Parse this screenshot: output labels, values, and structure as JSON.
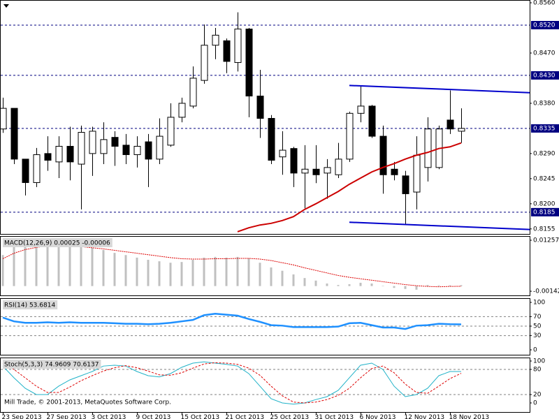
{
  "chart_data": [
    {
      "type": "candlestick",
      "xlim": [
        -0.25,
        47.125
      ],
      "ylim": [
        0.8146,
        0.8565
      ],
      "categories": [
        "23 Sep 2013",
        null,
        null,
        null,
        "27 Sep 2013",
        null,
        null,
        null,
        "3 Oct 2013",
        null,
        null,
        null,
        "9 Oct 2013",
        null,
        null,
        null,
        "15 Oct 2013",
        null,
        null,
        null,
        "21 Oct 2013",
        null,
        null,
        null,
        "25 Oct 2013",
        null,
        null,
        null,
        "31 Oct 2013",
        null,
        null,
        null,
        "6 Nov 2013",
        null,
        null,
        null,
        "12 Nov 2013",
        null,
        null,
        null,
        "18 Nov 2013",
        null
      ],
      "open": [
        0.8334,
        0.8371,
        0.828,
        0.8238,
        0.829,
        0.8275,
        0.8303,
        0.8271,
        0.829,
        0.829,
        0.8319,
        0.8305,
        0.8288,
        0.8311,
        0.828,
        0.8305,
        0.8355,
        0.8375,
        0.8421,
        0.8484,
        0.8492,
        0.8453,
        0.8513,
        0.8393,
        0.8353,
        0.8284,
        0.8299,
        0.8255,
        0.8262,
        0.8255,
        0.8252,
        0.828,
        0.8362,
        0.8375,
        0.8321,
        0.8262,
        0.825,
        0.8221,
        0.8265,
        0.8265,
        0.835,
        0.833
      ],
      "high": [
        0.839,
        0.8371,
        0.828,
        0.83,
        0.8321,
        0.8321,
        0.8338,
        0.834,
        0.8338,
        0.8346,
        0.833,
        0.8325,
        0.8321,
        0.8325,
        0.8353,
        0.838,
        0.839,
        0.8446,
        0.8521,
        0.8515,
        0.8496,
        0.8543,
        0.8515,
        0.844,
        0.8359,
        0.833,
        0.8302,
        0.8305,
        0.8305,
        0.828,
        0.8309,
        0.8365,
        0.8412,
        0.8377,
        0.834,
        0.8275,
        0.8259,
        0.8321,
        0.8355,
        0.834,
        0.8403,
        0.8371
      ],
      "low": [
        0.8327,
        0.8271,
        0.8215,
        0.823,
        0.8259,
        0.8246,
        0.8242,
        0.819,
        0.825,
        0.8271,
        0.8268,
        0.8271,
        0.8265,
        0.823,
        0.8271,
        0.8302,
        0.8346,
        0.8371,
        0.8415,
        0.8459,
        0.8434,
        0.8437,
        0.8355,
        0.8318,
        0.8271,
        0.8252,
        0.823,
        0.8192,
        0.8237,
        0.8209,
        0.8246,
        0.8275,
        0.8346,
        0.8318,
        0.8218,
        0.8242,
        0.8162,
        0.819,
        0.824,
        0.8262,
        0.8325,
        0.8309
      ],
      "close": [
        0.8371,
        0.828,
        0.8238,
        0.8288,
        0.8278,
        0.8303,
        0.8275,
        0.8328,
        0.833,
        0.8315,
        0.8303,
        0.8288,
        0.8303,
        0.828,
        0.8321,
        0.8355,
        0.838,
        0.8425,
        0.8484,
        0.8502,
        0.8455,
        0.8513,
        0.8393,
        0.8353,
        0.8278,
        0.8296,
        0.8255,
        0.8262,
        0.8252,
        0.8265,
        0.828,
        0.8362,
        0.8375,
        0.8321,
        0.8252,
        0.8252,
        0.8218,
        0.8287,
        0.8334,
        0.8334,
        0.8334,
        0.8335
      ],
      "ma_values": [
        null,
        null,
        null,
        null,
        null,
        null,
        null,
        null,
        null,
        null,
        null,
        null,
        null,
        null,
        null,
        null,
        null,
        null,
        null,
        null,
        null,
        0.815,
        0.8157,
        0.8162,
        0.8165,
        0.817,
        0.8177,
        0.819,
        0.82,
        0.8211,
        0.8222,
        0.8235,
        0.8246,
        0.8257,
        0.8265,
        0.8272,
        0.828,
        0.8287,
        0.8292,
        0.8299,
        0.8302,
        0.8309
      ],
      "ma_color": "#cc0000",
      "trendlines": [
        {
          "x": [
            31,
            47.125
          ],
          "values": [
            0.8412,
            0.8399
          ]
        },
        {
          "x": [
            31,
            47.125
          ],
          "values": [
            0.8167,
            0.8154
          ]
        }
      ],
      "trend_color": "#0000cc",
      "hlines": [
        {
          "value": 0.852,
          "label": "0.8520"
        },
        {
          "value": 0.843,
          "label": "0.8430"
        },
        {
          "value": 0.8335,
          "label": "0.8335"
        },
        {
          "value": 0.8185,
          "label": "0.8185"
        }
      ],
      "hline_color": "#000080",
      "yticks": [
        {
          "value": 0.856,
          "label": "0.8560"
        },
        {
          "value": 0.847,
          "label": "0.8470"
        },
        {
          "value": 0.838,
          "label": "0.8380"
        },
        {
          "value": 0.829,
          "label": "0.8290"
        },
        0.8245,
        {
          "value": 0.82,
          "label": "0.8200"
        },
        0.8155
      ]
    },
    {
      "type": "macd",
      "title": "MACD(12,26,9) 0.00025 -0.00006",
      "ylim": [
        -0.00256,
        0.01372
      ],
      "yticks": [
        0.01257,
        -0.00142
      ],
      "values": [
        0.0085,
        0.011,
        0.0116,
        0.0118,
        0.012,
        0.0118,
        0.0114,
        0.011,
        0.0105,
        0.0099,
        0.0091,
        0.0085,
        0.0078,
        0.0072,
        0.0068,
        0.0064,
        0.0066,
        0.0072,
        0.0078,
        0.008,
        0.0078,
        0.008,
        0.0076,
        0.0064,
        0.0051,
        0.0042,
        0.0032,
        0.0022,
        0.0015,
        0.0007,
        0.0003,
        0.0005,
        0.0009,
        0.0007,
        0.0001,
        -0.0005,
        -0.0008,
        -0.001,
        0.0003,
        0.0002,
        0.0002,
        0.00025
      ],
      "color": "#c0c0c0",
      "signal": [
        0.0075,
        0.009,
        0.01,
        0.0106,
        0.011,
        0.0111,
        0.011,
        0.0108,
        0.0105,
        0.0102,
        0.0098,
        0.0094,
        0.009,
        0.0086,
        0.0082,
        0.0078,
        0.0075,
        0.0074,
        0.0074,
        0.0075,
        0.0075,
        0.0076,
        0.0076,
        0.0074,
        0.007,
        0.0064,
        0.0058,
        0.005,
        0.0043,
        0.0036,
        0.0029,
        0.0024,
        0.002,
        0.0016,
        0.0012,
        0.0008,
        0.0004,
        0.0001,
        -0.0001,
        -0.0002,
        -0.0001,
        -6e-05
      ],
      "signal_color": "#dd0000"
    },
    {
      "type": "line",
      "title": "RSI(14) 53.6814",
      "ylim": [
        -10.3,
        108.8
      ],
      "yticks": [
        100,
        70,
        50,
        30,
        0
      ],
      "levels": [
        70,
        50,
        30
      ],
      "series": [
        {
          "color": "#1e90ff",
          "width": 2.5,
          "dashed": false,
          "values": [
            68,
            60,
            57,
            57,
            58,
            57,
            58,
            57,
            57,
            57,
            56,
            55,
            55,
            54,
            55,
            57,
            60,
            63,
            73,
            76,
            74,
            72,
            65,
            59,
            52,
            51,
            48,
            48,
            48,
            48,
            49,
            56,
            57,
            52,
            47,
            47,
            44,
            51,
            52,
            55,
            54,
            53.6814
          ]
        }
      ]
    },
    {
      "type": "line",
      "title": "Stoch(5,3,3) 74.9609 70.6137",
      "ylim": [
        -21.7,
        108.3
      ],
      "yticks": [
        100,
        80,
        20,
        0
      ],
      "levels": [
        80,
        20
      ],
      "series": [
        {
          "color": "#20b2c8",
          "width": 1,
          "dashed": false,
          "values": [
            88,
            60,
            35,
            20,
            20,
            40,
            55,
            65,
            75,
            88,
            90,
            88,
            75,
            65,
            62,
            70,
            85,
            95,
            98,
            95,
            92,
            88,
            70,
            40,
            10,
            0,
            -3,
            0,
            8,
            15,
            30,
            60,
            90,
            95,
            80,
            40,
            15,
            20,
            35,
            65,
            75,
            74.9609
          ]
        },
        {
          "color": "#dd0000",
          "width": 1,
          "dashed": true,
          "values": [
            95,
            80,
            60,
            40,
            25,
            25,
            38,
            53,
            65,
            76,
            84,
            89,
            84,
            76,
            67,
            66,
            72,
            83,
            93,
            96,
            95,
            92,
            83,
            66,
            40,
            17,
            2,
            0,
            2,
            8,
            18,
            35,
            60,
            82,
            88,
            72,
            45,
            25,
            23,
            40,
            58,
            70.6137
          ]
        }
      ],
      "footer": "Mill Trade, © 2001-2013, MetaQuotes Software Corp."
    }
  ]
}
